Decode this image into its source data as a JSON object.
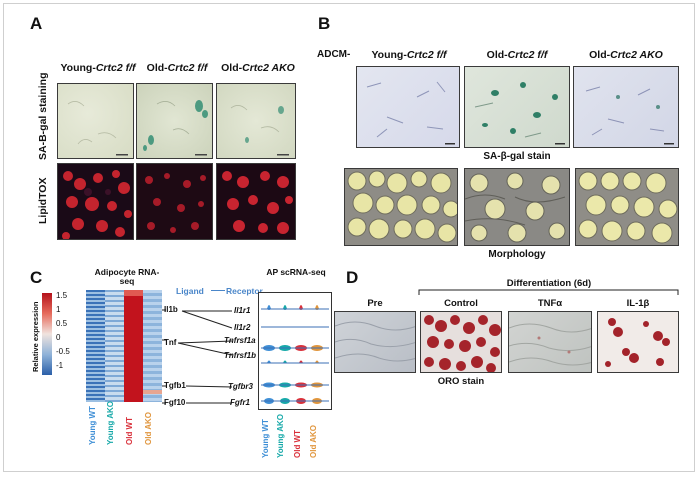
{
  "panels": {
    "A": {
      "letter": "A",
      "columns": [
        {
          "prefix": "Young-",
          "gene": "Crtc2 f/f"
        },
        {
          "prefix": "Old-",
          "gene": "Crtc2 f/f"
        },
        {
          "prefix": "Old-",
          "gene": "Crtc2 AKO"
        }
      ],
      "row_labels": [
        "SA-B-gal staining",
        "LipidTOX"
      ]
    },
    "B": {
      "letter": "B",
      "row_prefix": "ADCM-",
      "columns": [
        {
          "prefix": "Young-",
          "gene": "Crtc2 f/f"
        },
        {
          "prefix": "Old-",
          "gene": "Crtc2 f/f"
        },
        {
          "prefix": "Old-",
          "gene": "Crtc2 AKO"
        }
      ],
      "captions": [
        "SA-β-gal stain",
        "Morphology"
      ]
    },
    "C": {
      "letter": "C",
      "heatmap_title": "Adipocyte RNA-seq",
      "scale_label": "Relative expression",
      "scale_ticks": [
        "1.5",
        "1",
        "0.5",
        "0",
        "-0.5",
        "-1"
      ],
      "ligand_label": "Ligand",
      "receptor_label": "Receptor",
      "ligands": [
        "Il1b",
        "Tnf",
        "Tgfb1",
        "Fgf10"
      ],
      "receptors": [
        "Il1r1",
        "Il1r2",
        "Tnfrsf1a",
        "Tnfrsf1b",
        "Tgfbr3",
        "Fgfr1"
      ],
      "ap_title": "AP scRNA-seq",
      "groups": [
        "Young WT",
        "Young AKO",
        "Old WT",
        "Old AKO"
      ],
      "colors": {
        "young_wt": "#3f8fd6",
        "young_ako": "#17a9a9",
        "old_wt": "#d9303a",
        "old_ako": "#e0953c"
      }
    },
    "D": {
      "letter": "D",
      "header": "Differentiation (6d)",
      "columns": [
        "Pre",
        "Control",
        "TNFα",
        "IL-1β"
      ],
      "caption": "ORO stain"
    }
  }
}
